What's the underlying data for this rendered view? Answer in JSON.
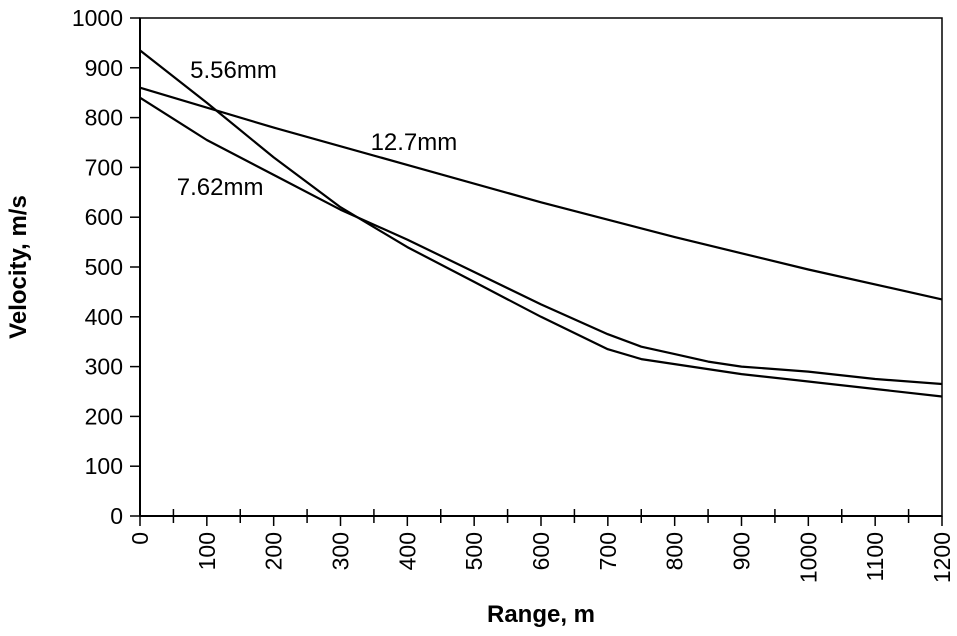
{
  "chart_data": {
    "type": "line",
    "title": "",
    "xlabel": "Range, m",
    "ylabel": "Velocity, m/s",
    "xlim": [
      0,
      1200
    ],
    "ylim": [
      0,
      1000
    ],
    "xticks": [
      0,
      100,
      200,
      300,
      400,
      500,
      600,
      700,
      800,
      900,
      1000,
      1100,
      1200
    ],
    "yticks": [
      0,
      100,
      200,
      300,
      400,
      500,
      600,
      700,
      800,
      900,
      1000
    ],
    "grid": false,
    "legend": "none",
    "series": [
      {
        "name": "5.56mm",
        "x": [
          0,
          100,
          200,
          300,
          400,
          500,
          600,
          700,
          750,
          800,
          900,
          1000,
          1100,
          1200
        ],
        "y": [
          935,
          830,
          720,
          620,
          540,
          470,
          400,
          335,
          315,
          305,
          285,
          270,
          255,
          240
        ]
      },
      {
        "name": "7.62mm",
        "x": [
          0,
          100,
          200,
          300,
          400,
          500,
          600,
          700,
          750,
          800,
          850,
          900,
          1000,
          1100,
          1200
        ],
        "y": [
          840,
          755,
          685,
          615,
          555,
          490,
          425,
          365,
          340,
          325,
          310,
          300,
          290,
          275,
          265
        ]
      },
      {
        "name": "12.7mm",
        "x": [
          0,
          200,
          400,
          600,
          800,
          1000,
          1200
        ],
        "y": [
          860,
          780,
          705,
          630,
          560,
          495,
          435
        ]
      }
    ],
    "annotations": [
      {
        "text": "5.56mm",
        "x": 75,
        "y": 880
      },
      {
        "text": "12.7mm",
        "x": 345,
        "y": 735
      },
      {
        "text": "7.62mm",
        "x": 55,
        "y": 645
      }
    ]
  }
}
